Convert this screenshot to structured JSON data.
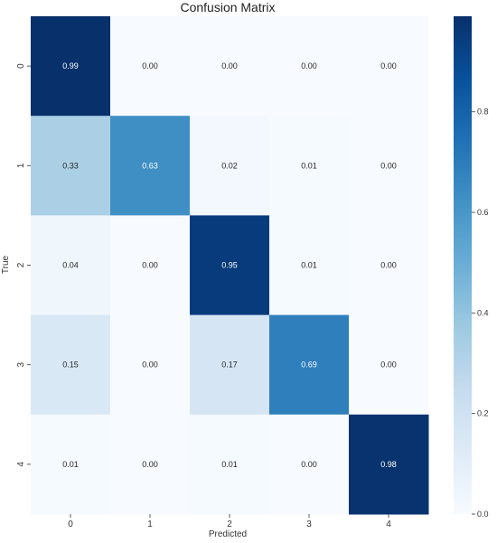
{
  "chart_data": {
    "type": "heatmap",
    "title": "Confusion Matrix",
    "xlabel": "Predicted",
    "ylabel": "True",
    "x_categories": [
      "0",
      "1",
      "2",
      "3",
      "4"
    ],
    "y_categories": [
      "0",
      "1",
      "2",
      "3",
      "4"
    ],
    "values": [
      [
        0.99,
        0.0,
        0.0,
        0.0,
        0.0
      ],
      [
        0.33,
        0.63,
        0.02,
        0.01,
        0.0
      ],
      [
        0.04,
        0.0,
        0.95,
        0.01,
        0.0
      ],
      [
        0.15,
        0.0,
        0.17,
        0.69,
        0.0
      ],
      [
        0.01,
        0.0,
        0.01,
        0.0,
        0.98
      ]
    ],
    "labels": [
      [
        "0.99",
        "0.00",
        "0.00",
        "0.00",
        "0.00"
      ],
      [
        "0.33",
        "0.63",
        "0.02",
        "0.01",
        "0.00"
      ],
      [
        "0.04",
        "0.00",
        "0.95",
        "0.01",
        "0.00"
      ],
      [
        "0.15",
        "0.00",
        "0.17",
        "0.69",
        "0.00"
      ],
      [
        "0.01",
        "0.00",
        "0.01",
        "0.00",
        "0.98"
      ]
    ],
    "colormap": "Blues",
    "color_low": "#f7fbff",
    "color_high": "#08306b",
    "colorbar": {
      "range": [
        0.0,
        0.99
      ],
      "ticks": [
        0.0,
        0.2,
        0.4,
        0.6,
        0.8
      ],
      "tick_labels": [
        "0.0",
        "0.2",
        "0.4",
        "0.6",
        "0.8"
      ]
    },
    "grid": false,
    "legend": "colorbar-right"
  }
}
